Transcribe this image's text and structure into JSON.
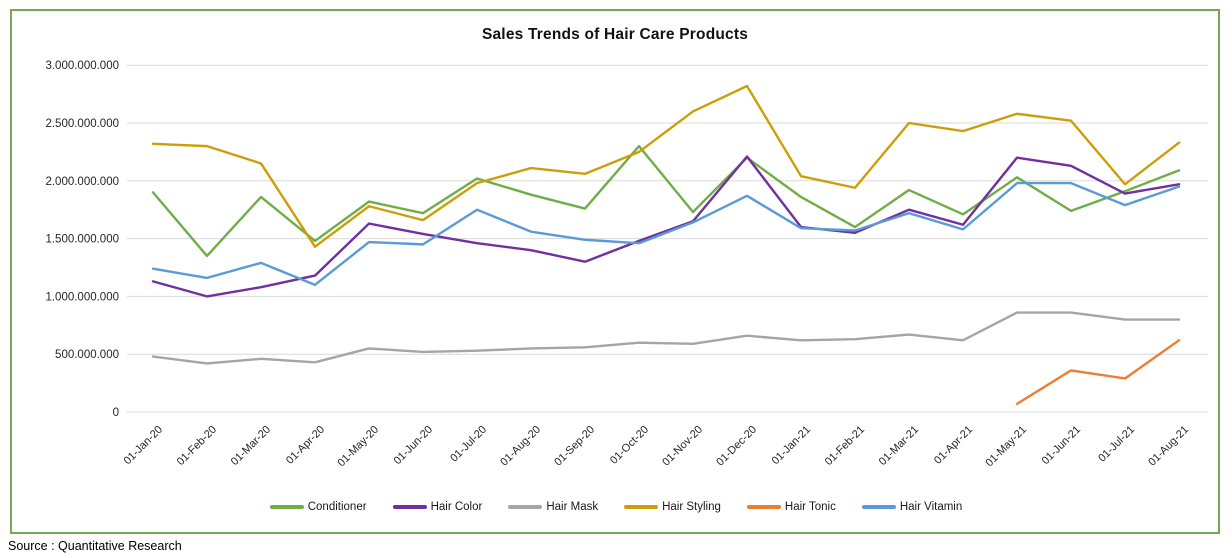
{
  "title": "Sales Trends of Hair Care Products",
  "source": "Source : Quantitative Research",
  "colors": {
    "frame_border": "#76a84f",
    "gridline": "#d9d9d9",
    "axis_text": "#262626",
    "title_text": "#111111"
  },
  "chart_data": {
    "type": "line",
    "title": "Sales Trends of Hair Care Products",
    "xlabel": "",
    "ylabel": "",
    "grid": true,
    "legend_position": "bottom",
    "x_labels": [
      "01-Jan-20",
      "01-Feb-20",
      "01-Mar-20",
      "01-Apr-20",
      "01-May-20",
      "01-Jun-20",
      "01-Jul-20",
      "01-Aug-20",
      "01-Sep-20",
      "01-Oct-20",
      "01-Nov-20",
      "01-Dec-20",
      "01-Jan-21",
      "01-Feb-21",
      "01-Mar-21",
      "01-Apr-21",
      "01-May-21",
      "01-Jun-21",
      "01-Jul-21",
      "01-Aug-21"
    ],
    "y_axis": {
      "min": 0,
      "max": 3000000000,
      "step": 500000000,
      "tick_labels": [
        "0",
        "500.000.000",
        "1.000.000.000",
        "1.500.000.000",
        "2.000.000.000",
        "2.500.000.000",
        "3.000.000.000"
      ]
    },
    "series": [
      {
        "name": "Conditioner",
        "color": "#70ad47",
        "values": [
          1900000000,
          1350000000,
          1860000000,
          1480000000,
          1820000000,
          1720000000,
          2020000000,
          1880000000,
          1760000000,
          2300000000,
          1730000000,
          2200000000,
          1860000000,
          1600000000,
          1920000000,
          1710000000,
          2030000000,
          1740000000,
          1910000000,
          2090000000
        ]
      },
      {
        "name": "Hair Color",
        "color": "#7030a0",
        "values": [
          1130000000,
          1000000000,
          1080000000,
          1180000000,
          1630000000,
          1540000000,
          1460000000,
          1400000000,
          1300000000,
          1480000000,
          1650000000,
          2210000000,
          1600000000,
          1550000000,
          1750000000,
          1620000000,
          2200000000,
          2130000000,
          1890000000,
          1970000000
        ]
      },
      {
        "name": "Hair Mask",
        "color": "#a5a5a5",
        "values": [
          480000000,
          420000000,
          460000000,
          430000000,
          550000000,
          520000000,
          530000000,
          550000000,
          560000000,
          600000000,
          590000000,
          660000000,
          620000000,
          630000000,
          670000000,
          620000000,
          860000000,
          860000000,
          800000000,
          800000000
        ]
      },
      {
        "name": "Hair Styling",
        "color": "#cc9f0a",
        "values": [
          2320000000,
          2300000000,
          2150000000,
          1430000000,
          1780000000,
          1660000000,
          1980000000,
          2110000000,
          2060000000,
          2250000000,
          2600000000,
          2820000000,
          2040000000,
          1940000000,
          2500000000,
          2430000000,
          2580000000,
          2520000000,
          1970000000,
          2330000000
        ]
      },
      {
        "name": "Hair Tonic",
        "color": "#ed7d31",
        "values": [
          null,
          null,
          null,
          null,
          null,
          null,
          null,
          null,
          null,
          null,
          null,
          null,
          null,
          null,
          null,
          null,
          70000000,
          360000000,
          290000000,
          620000000
        ]
      },
      {
        "name": "Hair Vitamin",
        "color": "#5b9bd5",
        "values": [
          1240000000,
          1160000000,
          1290000000,
          1100000000,
          1470000000,
          1450000000,
          1750000000,
          1560000000,
          1490000000,
          1460000000,
          1640000000,
          1870000000,
          1590000000,
          1570000000,
          1720000000,
          1580000000,
          1980000000,
          1980000000,
          1790000000,
          1950000000
        ]
      }
    ]
  }
}
